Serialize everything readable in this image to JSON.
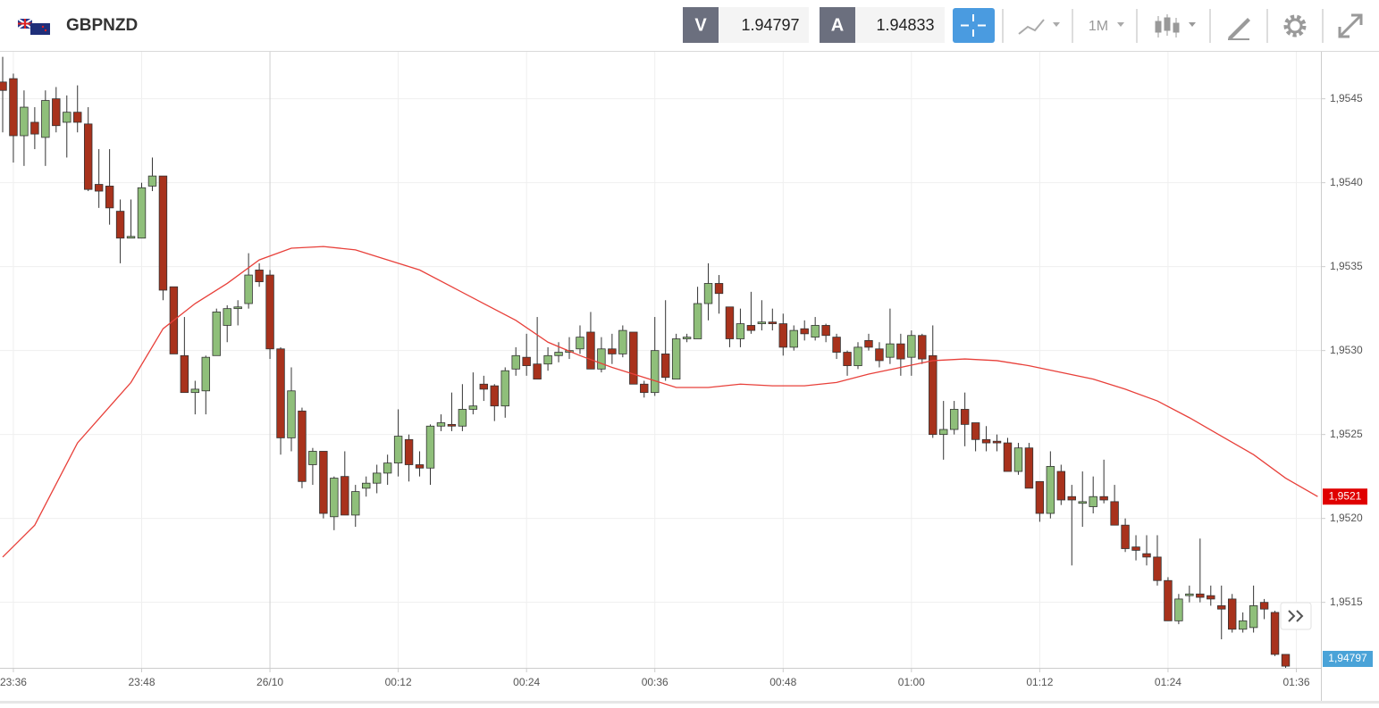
{
  "toolbar": {
    "symbol": "GBPNZD",
    "bid_label": "V",
    "bid": "1.94797",
    "ask_label": "A",
    "ask": "1.94833",
    "timeframe": "1M"
  },
  "chart_data": {
    "type": "candlestick",
    "x": [
      -1,
      0,
      1,
      2,
      3,
      4,
      5,
      6,
      7,
      8,
      9,
      10,
      11,
      12,
      13,
      14,
      15,
      16,
      17,
      18,
      19,
      20,
      21,
      22,
      23,
      24,
      25,
      26,
      27,
      28,
      29,
      30,
      31,
      32,
      33,
      34,
      35,
      36,
      37,
      38,
      39,
      40,
      41,
      42,
      43,
      44,
      45,
      46,
      47,
      48,
      49,
      50,
      51,
      52,
      53,
      54,
      55,
      56,
      57,
      58,
      59,
      60,
      61,
      62,
      63,
      64,
      65,
      66,
      67,
      68,
      69,
      70,
      71,
      72,
      73,
      74,
      75,
      76,
      77,
      78,
      79,
      80,
      81,
      82,
      83,
      84,
      85,
      86,
      87,
      88,
      89,
      90,
      91,
      92,
      93,
      94,
      95,
      96,
      97,
      98,
      99,
      100,
      101,
      102,
      103,
      104,
      105,
      106,
      107,
      108,
      109,
      110,
      111,
      112,
      113,
      114,
      115,
      116,
      117,
      118,
      119
    ],
    "open": [
      1.9546,
      1.95462,
      1.95428,
      1.95436,
      1.95427,
      1.9545,
      1.95436,
      1.95442,
      1.95435,
      1.95399,
      1.95398,
      1.95383,
      1.95367,
      1.95367,
      1.95398,
      1.95404,
      1.95338,
      1.95297,
      1.95275,
      1.95276,
      1.95297,
      1.95315,
      1.95325,
      1.95328,
      1.95348,
      1.95345,
      1.95301,
      1.95248,
      1.95264,
      1.95232,
      1.9524,
      1.95201,
      1.95225,
      1.95202,
      1.95218,
      1.95221,
      1.95227,
      1.95233,
      1.95247,
      1.95232,
      1.9523,
      1.95255,
      1.95256,
      1.95255,
      1.95265,
      1.9528,
      1.95279,
      1.95267,
      1.95289,
      1.95296,
      1.95292,
      1.95292,
      1.95297,
      1.95299,
      1.95301,
      1.95311,
      1.95289,
      1.95301,
      1.95298,
      1.95311,
      1.9528,
      1.95275,
      1.95298,
      1.95283,
      1.95307,
      1.95307,
      1.95328,
      1.9534,
      1.95326,
      1.95307,
      1.95315,
      1.95316,
      1.95317,
      1.95316,
      1.95302,
      1.95313,
      1.95308,
      1.95315,
      1.95308,
      1.95299,
      1.95291,
      1.95306,
      1.95301,
      1.95296,
      1.95304,
      1.95296,
      1.95309,
      1.95297,
      1.9525,
      1.95253,
      1.95265,
      1.95257,
      1.95247,
      1.95246,
      1.95245,
      1.95228,
      1.95242,
      1.95222,
      1.95203,
      1.95228,
      1.95213,
      1.95209,
      1.95207,
      1.95213,
      1.9521,
      1.95196,
      1.95183,
      1.95179,
      1.95177,
      1.95163,
      1.95139,
      1.95154,
      1.95155,
      1.95154,
      1.95148,
      1.95152,
      1.95134,
      1.95135,
      1.9515,
      1.95144,
      1.95119
    ],
    "high": [
      1.95475,
      1.95465,
      1.95455,
      1.95445,
      1.95455,
      1.95457,
      1.95452,
      1.95458,
      1.95445,
      1.9542,
      1.9542,
      1.9539,
      1.9539,
      1.954,
      1.95415,
      1.95404,
      1.95338,
      1.9532,
      1.95282,
      1.95297,
      1.95325,
      1.95327,
      1.9533,
      1.95358,
      1.95352,
      1.95348,
      1.95302,
      1.9529,
      1.95266,
      1.95242,
      1.9524,
      1.95225,
      1.9524,
      1.9522,
      1.95225,
      1.95232,
      1.95238,
      1.95265,
      1.9525,
      1.9524,
      1.95256,
      1.95262,
      1.95275,
      1.9528,
      1.95287,
      1.95285,
      1.9528,
      1.9529,
      1.95302,
      1.9531,
      1.9532,
      1.95302,
      1.95305,
      1.95308,
      1.95315,
      1.95323,
      1.95308,
      1.9531,
      1.95315,
      1.95311,
      1.95282,
      1.9532,
      1.9533,
      1.9531,
      1.9531,
      1.95338,
      1.95352,
      1.95345,
      1.95326,
      1.95325,
      1.95335,
      1.9533,
      1.95325,
      1.95322,
      1.95315,
      1.95318,
      1.9532,
      1.95316,
      1.9531,
      1.953,
      1.95305,
      1.9531,
      1.95305,
      1.95325,
      1.9531,
      1.95312,
      1.9531,
      1.95315,
      1.9527,
      1.9527,
      1.95275,
      1.95257,
      1.95255,
      1.9525,
      1.95248,
      1.95245,
      1.95245,
      1.95222,
      1.9524,
      1.95232,
      1.9522,
      1.95228,
      1.95225,
      1.95235,
      1.9522,
      1.952,
      1.9519,
      1.9519,
      1.9519,
      1.95165,
      1.95155,
      1.9516,
      1.95188,
      1.9516,
      1.9516,
      1.95155,
      1.95144,
      1.9516,
      1.95152,
      1.95145,
      1.95119
    ],
    "low": [
      1.9543,
      1.95412,
      1.9541,
      1.9542,
      1.9541,
      1.9543,
      1.95415,
      1.9543,
      1.95395,
      1.95385,
      1.95375,
      1.95352,
      1.95367,
      1.95367,
      1.95395,
      1.9533,
      1.95298,
      1.95275,
      1.95262,
      1.95262,
      1.95297,
      1.95305,
      1.95315,
      1.95325,
      1.95338,
      1.95295,
      1.95238,
      1.9524,
      1.95218,
      1.9522,
      1.952,
      1.95193,
      1.95202,
      1.95195,
      1.95213,
      1.95215,
      1.9522,
      1.95225,
      1.95222,
      1.95225,
      1.9522,
      1.95252,
      1.95252,
      1.95252,
      1.95262,
      1.9527,
      1.95258,
      1.9526,
      1.95285,
      1.95285,
      1.95283,
      1.95288,
      1.95293,
      1.95295,
      1.95298,
      1.95289,
      1.95287,
      1.95292,
      1.95296,
      1.9528,
      1.95272,
      1.95273,
      1.95282,
      1.95283,
      1.95305,
      1.95307,
      1.95318,
      1.95322,
      1.95302,
      1.95302,
      1.9531,
      1.95312,
      1.95312,
      1.95297,
      1.953,
      1.95306,
      1.95306,
      1.95305,
      1.95295,
      1.95285,
      1.95289,
      1.953,
      1.9529,
      1.95292,
      1.95285,
      1.95285,
      1.95292,
      1.95248,
      1.95235,
      1.9525,
      1.95243,
      1.9524,
      1.9524,
      1.9524,
      1.95228,
      1.95226,
      1.95218,
      1.95198,
      1.952,
      1.95208,
      1.95172,
      1.95195,
      1.95203,
      1.95209,
      1.95196,
      1.9518,
      1.95175,
      1.95172,
      1.9516,
      1.95139,
      1.95137,
      1.9515,
      1.9515,
      1.95148,
      1.95128,
      1.95132,
      1.95132,
      1.95132,
      1.9514,
      1.95118,
      1.95111
    ],
    "close": [
      1.95455,
      1.95428,
      1.95445,
      1.95429,
      1.95449,
      1.95434,
      1.95442,
      1.95436,
      1.95396,
      1.95395,
      1.95385,
      1.95367,
      1.95368,
      1.95397,
      1.95404,
      1.95336,
      1.95298,
      1.95275,
      1.95277,
      1.95296,
      1.95323,
      1.95325,
      1.95326,
      1.95345,
      1.95341,
      1.95301,
      1.95248,
      1.95276,
      1.95222,
      1.9524,
      1.95203,
      1.95224,
      1.95202,
      1.95216,
      1.95221,
      1.95227,
      1.95233,
      1.95249,
      1.95232,
      1.9523,
      1.95255,
      1.95257,
      1.95255,
      1.95265,
      1.95267,
      1.95277,
      1.95267,
      1.95288,
      1.95297,
      1.95291,
      1.95283,
      1.95297,
      1.95299,
      1.953,
      1.95308,
      1.95289,
      1.95301,
      1.95298,
      1.95312,
      1.9528,
      1.95275,
      1.953,
      1.95284,
      1.95307,
      1.95308,
      1.95328,
      1.9534,
      1.95334,
      1.95307,
      1.95316,
      1.95312,
      1.95317,
      1.95316,
      1.95302,
      1.95312,
      1.9531,
      1.95315,
      1.95309,
      1.95299,
      1.95291,
      1.95302,
      1.95302,
      1.95294,
      1.95304,
      1.95295,
      1.95309,
      1.95295,
      1.9525,
      1.95253,
      1.95265,
      1.95256,
      1.95247,
      1.95245,
      1.95245,
      1.95228,
      1.95242,
      1.95218,
      1.95203,
      1.95231,
      1.95211,
      1.95211,
      1.9521,
      1.95213,
      1.95211,
      1.95196,
      1.95182,
      1.95181,
      1.95177,
      1.95163,
      1.95139,
      1.95152,
      1.95155,
      1.95153,
      1.95152,
      1.95146,
      1.95134,
      1.95139,
      1.95148,
      1.95146,
      1.95119,
      1.95112
    ],
    "up_color": "#8fbf7a",
    "down_color": "#a8321c",
    "ma": {
      "color": "#e8403a",
      "x": [
        -1,
        2,
        6,
        11,
        14,
        17,
        20,
        23,
        26,
        29,
        32,
        35,
        38,
        41,
        44,
        47,
        50,
        53,
        56,
        59,
        62,
        65,
        68,
        71,
        74,
        77,
        80,
        83,
        86,
        89,
        92,
        95,
        98,
        101,
        104,
        107,
        110,
        113,
        116,
        119,
        122
      ],
      "values": [
        1.95177,
        1.95196,
        1.95245,
        1.95281,
        1.95313,
        1.95328,
        1.9534,
        1.95354,
        1.95361,
        1.95362,
        1.9536,
        1.95354,
        1.95348,
        1.95338,
        1.95328,
        1.95318,
        1.95305,
        1.95297,
        1.9529,
        1.95284,
        1.95278,
        1.95278,
        1.9528,
        1.95279,
        1.95279,
        1.95281,
        1.95286,
        1.9529,
        1.95294,
        1.95295,
        1.95294,
        1.95291,
        1.95287,
        1.95283,
        1.95277,
        1.9527,
        1.9526,
        1.95249,
        1.95238,
        1.95224,
        1.95213
      ]
    },
    "ma_label": "1,9521",
    "price_label": "1,94797",
    "xlim": [
      -1.25,
      122.3
    ],
    "ylim": [
      1.95111,
      1.95478
    ],
    "xticks": [
      {
        "value": 0,
        "label": "23:36"
      },
      {
        "value": 12,
        "label": "23:48"
      },
      {
        "value": 24,
        "label": "26/10"
      },
      {
        "value": 36,
        "label": "00:12"
      },
      {
        "value": 48,
        "label": "00:24"
      },
      {
        "value": 60,
        "label": "00:36"
      },
      {
        "value": 72,
        "label": "00:48"
      },
      {
        "value": 84,
        "label": "01:00"
      },
      {
        "value": 96,
        "label": "01:12"
      },
      {
        "value": 108,
        "label": "01:24"
      },
      {
        "value": 120,
        "label": "01:36"
      }
    ],
    "yticks": [
      {
        "value": 1.9515,
        "label": "1,9515"
      },
      {
        "value": 1.952,
        "label": "1,9520"
      },
      {
        "value": 1.9525,
        "label": "1,9525"
      },
      {
        "value": 1.953,
        "label": "1,9530"
      },
      {
        "value": 1.9535,
        "label": "1,9535"
      },
      {
        "value": 1.954,
        "label": "1,9540"
      },
      {
        "value": 1.9545,
        "label": "1,9545"
      }
    ],
    "grid": true
  }
}
